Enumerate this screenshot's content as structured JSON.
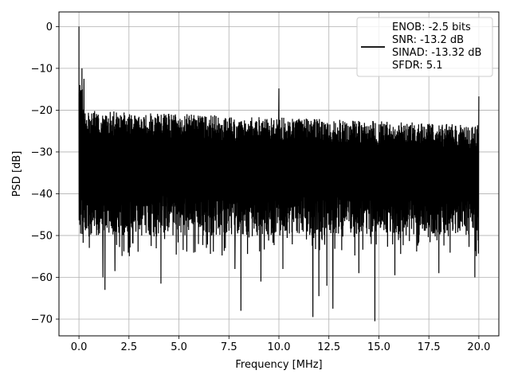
{
  "chart_data": {
    "type": "line",
    "xlabel": "Frequency [MHz]",
    "ylabel": "PSD [dB]",
    "xlim": [
      -1.0,
      21.0
    ],
    "ylim": [
      -74.0,
      3.5
    ],
    "xticks": [
      0.0,
      2.5,
      5.0,
      7.5,
      10.0,
      12.5,
      15.0,
      17.5,
      20.0
    ],
    "xtick_labels": [
      "0.0",
      "2.5",
      "5.0",
      "7.5",
      "10.0",
      "12.5",
      "15.0",
      "17.5",
      "20.0"
    ],
    "yticks": [
      0,
      -10,
      -20,
      -30,
      -40,
      -50,
      -60,
      -70
    ],
    "ytick_labels": [
      "0",
      "−10",
      "−20",
      "−30",
      "−40",
      "−50",
      "−60",
      "−70"
    ],
    "grid": true,
    "legend_position": "upper right",
    "series": [
      {
        "color": "#000000",
        "noise_band": {
          "x_start": 0.0,
          "x_end": 20.0,
          "upper_envelope_start": -20.0,
          "upper_envelope_end": -23.5,
          "typical_center": -33.0,
          "lower_typical": -47.0
        },
        "peaks": [
          {
            "x": 0.0,
            "y": 0.0
          },
          {
            "x": 0.05,
            "y": -14.0
          },
          {
            "x": 0.15,
            "y": -10.0
          },
          {
            "x": 0.25,
            "y": -12.5
          },
          {
            "x": 10.0,
            "y": -14.8
          },
          {
            "x": 20.0,
            "y": -16.7
          }
        ],
        "dips": [
          {
            "x": 1.2,
            "y": -60.0
          },
          {
            "x": 1.3,
            "y": -63.0
          },
          {
            "x": 1.8,
            "y": -58.5
          },
          {
            "x": 4.1,
            "y": -61.5
          },
          {
            "x": 7.8,
            "y": -58.0
          },
          {
            "x": 8.1,
            "y": -68.0
          },
          {
            "x": 9.1,
            "y": -61.0
          },
          {
            "x": 10.2,
            "y": -58.0
          },
          {
            "x": 11.7,
            "y": -69.5
          },
          {
            "x": 12.0,
            "y": -64.5
          },
          {
            "x": 12.4,
            "y": -62.0
          },
          {
            "x": 12.7,
            "y": -67.5
          },
          {
            "x": 14.0,
            "y": -59.0
          },
          {
            "x": 14.8,
            "y": -70.5
          },
          {
            "x": 15.8,
            "y": -59.5
          },
          {
            "x": 18.0,
            "y": -59.0
          },
          {
            "x": 19.8,
            "y": -60.0
          }
        ]
      }
    ],
    "legend": {
      "lines": [
        "ENOB: -2.5 bits",
        "SNR: -13.2 dB",
        "SINAD: -13.32 dB",
        "SFDR: 5.1"
      ]
    }
  }
}
